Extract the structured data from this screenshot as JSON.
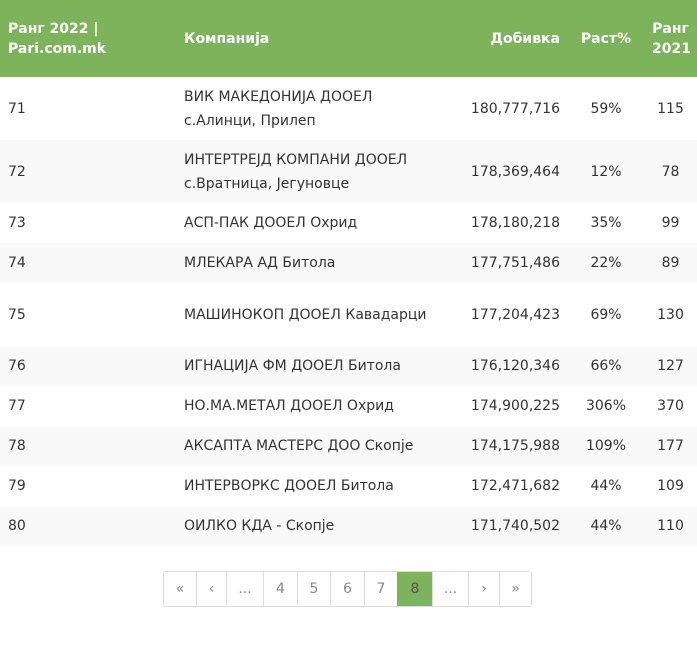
{
  "colors": {
    "header": "#7cb35b",
    "active_page": "#7cb35b"
  },
  "header": {
    "rank2022": "Ранг 2022 | Pari.com.mk",
    "company": "Компанија",
    "profit": "Добивка",
    "growth": "Раст%",
    "rank2021": "Ранг 2021"
  },
  "rows": [
    {
      "rank": "71",
      "company": "ВИК МАКЕДОНИЈА ДООЕЛ с.Алинци, Прилеп",
      "profit": "180,777,716",
      "growth": "59%",
      "rank2021": "115"
    },
    {
      "rank": "72",
      "company": "ИНТЕРТРЕЈД КОМПАНИ ДООЕЛ с.Вратница, Јегуновце",
      "profit": "178,369,464",
      "growth": "12%",
      "rank2021": "78"
    },
    {
      "rank": "73",
      "company": "АСП-ПАК ДООЕЛ Охрид",
      "profit": "178,180,218",
      "growth": "35%",
      "rank2021": "99"
    },
    {
      "rank": "74",
      "company": "МЛЕКАРА АД Битола",
      "profit": "177,751,486",
      "growth": "22%",
      "rank2021": "89"
    },
    {
      "rank": "75",
      "company": "МАШИНОКОП ДООЕЛ Кавадарци",
      "profit": "177,204,423",
      "growth": "69%",
      "rank2021": "130"
    },
    {
      "rank": "76",
      "company": "ИГНАЦИЈА ФМ ДООЕЛ Битола",
      "profit": "176,120,346",
      "growth": "66%",
      "rank2021": "127"
    },
    {
      "rank": "77",
      "company": "НО.МА.МЕТАЛ ДООЕЛ Охрид",
      "profit": "174,900,225",
      "growth": "306%",
      "rank2021": "370"
    },
    {
      "rank": "78",
      "company": "АКСАПТА МАСТЕРС ДОО Скопје",
      "profit": "174,175,988",
      "growth": "109%",
      "rank2021": "177"
    },
    {
      "rank": "79",
      "company": "ИНТЕРВОРКС ДООЕЛ Битола",
      "profit": "172,471,682",
      "growth": "44%",
      "rank2021": "109"
    },
    {
      "rank": "80",
      "company": "ОИЛКО КДА - Скопје",
      "profit": "171,740,502",
      "growth": "44%",
      "rank2021": "110"
    }
  ],
  "pagination": {
    "current": "8",
    "items": [
      "«",
      "‹",
      "...",
      "4",
      "5",
      "6",
      "7",
      "8",
      "...",
      "›",
      "»"
    ]
  }
}
